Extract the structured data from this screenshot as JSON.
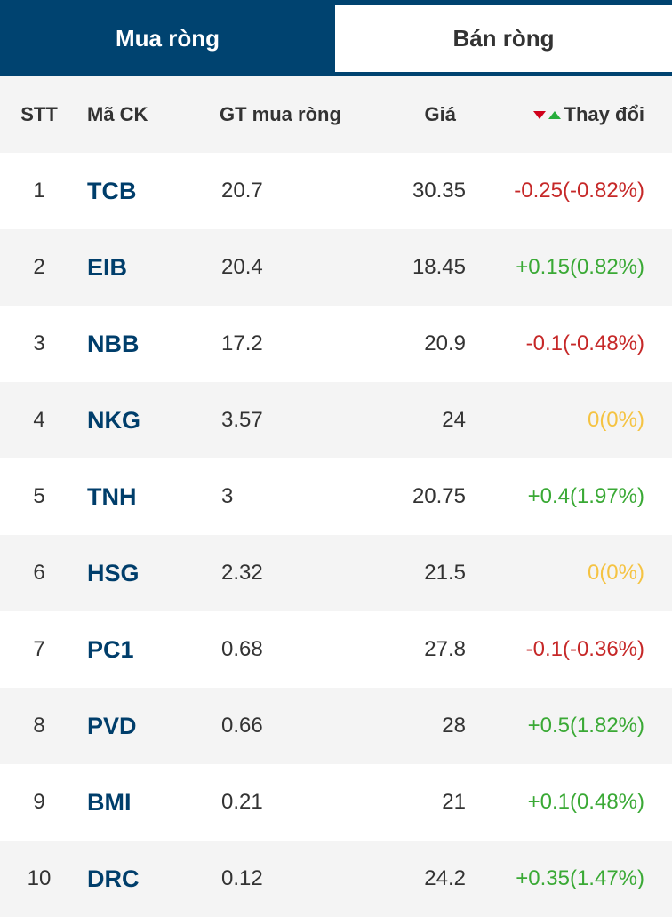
{
  "tabs": {
    "buy_label": "Mua ròng",
    "sell_label": "Bán ròng"
  },
  "columns": {
    "stt": "STT",
    "code": "Mã CK",
    "net_value": "GT mua ròng",
    "price": "Giá",
    "change": "Thay đổi"
  },
  "colors": {
    "header_bg": "#004370",
    "code": "#003e6b",
    "down": "#c62828",
    "up": "#3aa935",
    "unchanged": "#f5c342"
  },
  "rows": [
    {
      "stt": "1",
      "code": "TCB",
      "net_value": "20.7",
      "price": "30.35",
      "change": "-0.25(-0.82%)",
      "direction": "down"
    },
    {
      "stt": "2",
      "code": "EIB",
      "net_value": "20.4",
      "price": "18.45",
      "change": "+0.15(0.82%)",
      "direction": "up"
    },
    {
      "stt": "3",
      "code": "NBB",
      "net_value": "17.2",
      "price": "20.9",
      "change": "-0.1(-0.48%)",
      "direction": "down"
    },
    {
      "stt": "4",
      "code": "NKG",
      "net_value": "3.57",
      "price": "24",
      "change": "0(0%)",
      "direction": "unchanged"
    },
    {
      "stt": "5",
      "code": "TNH",
      "net_value": "3",
      "price": "20.75",
      "change": "+0.4(1.97%)",
      "direction": "up"
    },
    {
      "stt": "6",
      "code": "HSG",
      "net_value": "2.32",
      "price": "21.5",
      "change": "0(0%)",
      "direction": "unchanged"
    },
    {
      "stt": "7",
      "code": "PC1",
      "net_value": "0.68",
      "price": "27.8",
      "change": "-0.1(-0.36%)",
      "direction": "down"
    },
    {
      "stt": "8",
      "code": "PVD",
      "net_value": "0.66",
      "price": "28",
      "change": "+0.5(1.82%)",
      "direction": "up"
    },
    {
      "stt": "9",
      "code": "BMI",
      "net_value": "0.21",
      "price": "21",
      "change": "+0.1(0.48%)",
      "direction": "up"
    },
    {
      "stt": "10",
      "code": "DRC",
      "net_value": "0.12",
      "price": "24.2",
      "change": "+0.35(1.47%)",
      "direction": "up"
    }
  ]
}
